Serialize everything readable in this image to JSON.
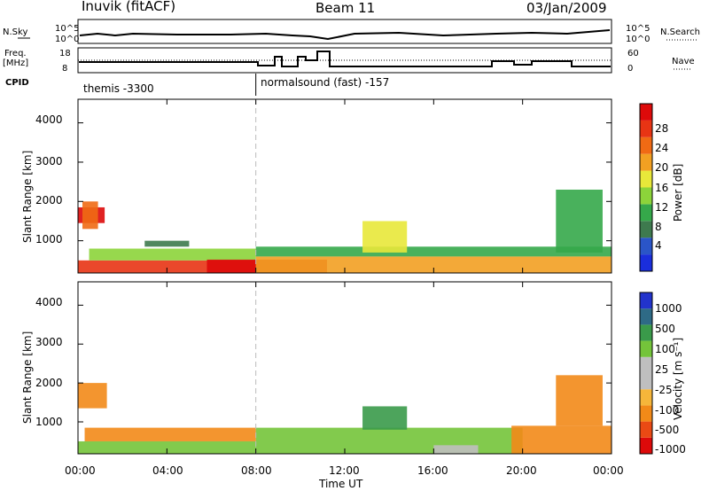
{
  "header": {
    "station": "Inuvik (fitACF)",
    "beam": "Beam 11",
    "date": "03/Jan/2009"
  },
  "strip": {
    "nsky_label": "N.Sky",
    "nsky_ticks": [
      "10^5",
      "10^0"
    ],
    "nsearch_label": "N.Search",
    "nsearch_ticks": [
      "10^5",
      "10^0"
    ],
    "freq_label": "Freq.",
    "freq_unit": "[MHz]",
    "freq_ticks": [
      "18",
      "8"
    ],
    "nave_label": "Nave",
    "nave_ticks": [
      "60",
      "0"
    ],
    "cpid_label": "CPID",
    "cpid_segments": [
      {
        "label": "themis -3300",
        "start_hour": 0
      },
      {
        "label": "normalsound (fast) -157",
        "start_hour": 8
      }
    ]
  },
  "axes": {
    "ylabel": "Slant Range [km]",
    "xlabel": "Time UT",
    "yticks": [
      "4000",
      "3000",
      "2000",
      "1000"
    ],
    "xticks": [
      "00:00",
      "04:00",
      "08:00",
      "12:00",
      "16:00",
      "20:00",
      "00:00"
    ]
  },
  "colors": {
    "power": [
      "#1a2edc",
      "#2a55c8",
      "#3e7a4e",
      "#35a84a",
      "#8cd43a",
      "#e8e83a",
      "#f2a022",
      "#f06a14",
      "#e83414",
      "#dd0a0a"
    ],
    "velocity": [
      "#dd0a0a",
      "#ea4a14",
      "#f28a18",
      "#f6b63a",
      "#bfbfbf",
      "#bfbfbf",
      "#74c43a",
      "#3a9a4a",
      "#2e6a86",
      "#2233cc"
    ]
  },
  "chart_data": [
    {
      "type": "heatmap",
      "name": "power",
      "colorbar_label": "Power [dB]",
      "colorbar_ticks": [
        "28",
        "24",
        "20",
        "16",
        "12",
        "8",
        "4"
      ],
      "x_range_hours": [
        0,
        24
      ],
      "y_range_km": [
        180,
        4600
      ],
      "cells": [
        {
          "t0": 0.0,
          "t1": 1.2,
          "r0": 1450,
          "r1": 1850,
          "v": 27
        },
        {
          "t0": 0.2,
          "t1": 0.9,
          "r0": 1300,
          "r1": 2000,
          "v": 22
        },
        {
          "t0": 0.0,
          "t1": 8.0,
          "r0": 180,
          "r1": 500,
          "v": 24
        },
        {
          "t0": 0.5,
          "t1": 8.0,
          "r0": 500,
          "r1": 800,
          "v": 14
        },
        {
          "t0": 5.8,
          "t1": 11.2,
          "r0": 180,
          "r1": 520,
          "v": 29
        },
        {
          "t0": 8.0,
          "t1": 24.0,
          "r0": 180,
          "r1": 600,
          "v": 20
        },
        {
          "t0": 8.0,
          "t1": 24.0,
          "r0": 600,
          "r1": 850,
          "v": 10
        },
        {
          "t0": 12.8,
          "t1": 14.8,
          "r0": 700,
          "r1": 1500,
          "v": 15
        },
        {
          "t0": 21.5,
          "t1": 23.6,
          "r0": 700,
          "r1": 2300,
          "v": 9
        },
        {
          "t0": 3.0,
          "t1": 5.0,
          "r0": 850,
          "r1": 1000,
          "v": 6
        }
      ]
    },
    {
      "type": "heatmap",
      "name": "velocity",
      "colorbar_label": "Velocity [m s⁻¹]",
      "colorbar_ticks": [
        "1000",
        "500",
        "100",
        "25",
        "-25",
        "-100",
        "-500",
        "-1000"
      ],
      "x_range_hours": [
        0,
        24
      ],
      "y_range_km": [
        180,
        4600
      ],
      "cells": [
        {
          "t0": 0.0,
          "t1": 1.3,
          "r0": 1350,
          "r1": 2000,
          "v": -200
        },
        {
          "t0": 0.0,
          "t1": 8.0,
          "r0": 180,
          "r1": 500,
          "v": 50
        },
        {
          "t0": 0.3,
          "t1": 8.0,
          "r0": 500,
          "r1": 850,
          "v": -120
        },
        {
          "t0": 8.0,
          "t1": 20.0,
          "r0": 180,
          "r1": 850,
          "v": 80
        },
        {
          "t0": 12.8,
          "t1": 14.8,
          "r0": 800,
          "r1": 1400,
          "v": 300
        },
        {
          "t0": 19.5,
          "t1": 24.0,
          "r0": 180,
          "r1": 900,
          "v": -150
        },
        {
          "t0": 21.5,
          "t1": 23.6,
          "r0": 900,
          "r1": 2200,
          "v": -250
        },
        {
          "t0": 16.0,
          "t1": 18.0,
          "r0": 180,
          "r1": 400,
          "v": 0
        }
      ]
    }
  ]
}
